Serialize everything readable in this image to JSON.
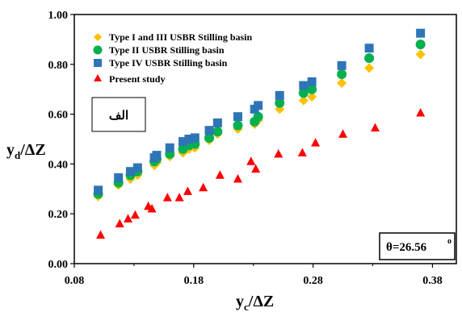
{
  "chart_data": {
    "type": "scatter",
    "x": {
      "min": 0.08,
      "max": 0.4,
      "ticks": [
        "0.08",
        "0.18",
        "0.28",
        "0.38"
      ],
      "tick_values": [
        0.08,
        0.18,
        0.28,
        0.38
      ]
    },
    "y": {
      "min": 0.0,
      "max": 1.0,
      "ticks": [
        "0.00",
        "0.20",
        "0.40",
        "0.60",
        "0.80",
        "1.00"
      ],
      "tick_values": [
        0.0,
        0.2,
        0.4,
        0.6,
        0.8,
        1.0
      ]
    },
    "xlabel": {
      "main": "y",
      "sub": "c",
      "rest": "/ΔZ"
    },
    "ylabel": {
      "main": "y",
      "sub": "d",
      "rest": "/ΔZ"
    },
    "grid": false,
    "legend_position": "top-left",
    "series": [
      {
        "name": "Type I and III USBR Stilling basin",
        "marker": "diamond",
        "color": "#ffc000",
        "points": [
          [
            0.1,
            0.27
          ],
          [
            0.117,
            0.315
          ],
          [
            0.127,
            0.34
          ],
          [
            0.133,
            0.355
          ],
          [
            0.147,
            0.395
          ],
          [
            0.149,
            0.405
          ],
          [
            0.16,
            0.43
          ],
          [
            0.171,
            0.445
          ],
          [
            0.176,
            0.46
          ],
          [
            0.181,
            0.465
          ],
          [
            0.193,
            0.495
          ],
          [
            0.2,
            0.52
          ],
          [
            0.217,
            0.54
          ],
          [
            0.231,
            0.56
          ],
          [
            0.234,
            0.575
          ],
          [
            0.252,
            0.62
          ],
          [
            0.272,
            0.655
          ],
          [
            0.279,
            0.67
          ],
          [
            0.304,
            0.725
          ],
          [
            0.327,
            0.785
          ],
          [
            0.37,
            0.84
          ]
        ]
      },
      {
        "name": "Type II USBR Stilling basin",
        "marker": "circle",
        "color": "#00b050",
        "points": [
          [
            0.1,
            0.28
          ],
          [
            0.117,
            0.325
          ],
          [
            0.127,
            0.355
          ],
          [
            0.133,
            0.37
          ],
          [
            0.147,
            0.41
          ],
          [
            0.149,
            0.42
          ],
          [
            0.16,
            0.44
          ],
          [
            0.171,
            0.46
          ],
          [
            0.176,
            0.475
          ],
          [
            0.181,
            0.48
          ],
          [
            0.193,
            0.505
          ],
          [
            0.2,
            0.53
          ],
          [
            0.217,
            0.555
          ],
          [
            0.231,
            0.57
          ],
          [
            0.234,
            0.59
          ],
          [
            0.252,
            0.645
          ],
          [
            0.272,
            0.685
          ],
          [
            0.279,
            0.7
          ],
          [
            0.304,
            0.76
          ],
          [
            0.327,
            0.825
          ],
          [
            0.37,
            0.88
          ]
        ]
      },
      {
        "name": "Type IV USBR Stilling basin",
        "marker": "square",
        "color": "#2e75b6",
        "points": [
          [
            0.1,
            0.295
          ],
          [
            0.117,
            0.345
          ],
          [
            0.127,
            0.37
          ],
          [
            0.133,
            0.385
          ],
          [
            0.147,
            0.425
          ],
          [
            0.149,
            0.435
          ],
          [
            0.16,
            0.465
          ],
          [
            0.171,
            0.49
          ],
          [
            0.176,
            0.5
          ],
          [
            0.181,
            0.505
          ],
          [
            0.193,
            0.535
          ],
          [
            0.2,
            0.565
          ],
          [
            0.217,
            0.59
          ],
          [
            0.231,
            0.62
          ],
          [
            0.234,
            0.635
          ],
          [
            0.252,
            0.675
          ],
          [
            0.272,
            0.715
          ],
          [
            0.279,
            0.73
          ],
          [
            0.304,
            0.795
          ],
          [
            0.327,
            0.865
          ],
          [
            0.37,
            0.925
          ]
        ]
      },
      {
        "name": "Present study",
        "marker": "triangle",
        "color": "#ff0000",
        "points": [
          [
            0.102,
            0.115
          ],
          [
            0.118,
            0.16
          ],
          [
            0.125,
            0.18
          ],
          [
            0.131,
            0.195
          ],
          [
            0.142,
            0.23
          ],
          [
            0.145,
            0.22
          ],
          [
            0.158,
            0.265
          ],
          [
            0.168,
            0.265
          ],
          [
            0.175,
            0.29
          ],
          [
            0.188,
            0.305
          ],
          [
            0.202,
            0.355
          ],
          [
            0.217,
            0.34
          ],
          [
            0.228,
            0.41
          ],
          [
            0.232,
            0.38
          ],
          [
            0.251,
            0.44
          ],
          [
            0.271,
            0.445
          ],
          [
            0.282,
            0.485
          ],
          [
            0.305,
            0.52
          ],
          [
            0.332,
            0.545
          ],
          [
            0.37,
            0.605
          ]
        ]
      }
    ],
    "annotations": {
      "label_box": "الف",
      "angle": "θ=26.56",
      "angle_unit": "o"
    }
  }
}
